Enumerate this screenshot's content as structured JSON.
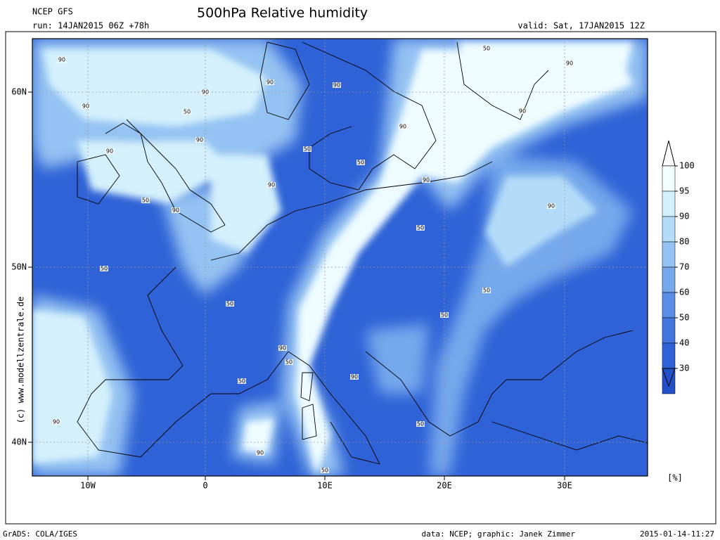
{
  "header": {
    "model": "NCEP GFS",
    "title": "500hPa Relative humidity",
    "run": "run: 14JAN2015 06Z +78h",
    "valid": "valid: Sat, 17JAN2015 12Z"
  },
  "map": {
    "lon_ticks": [
      "10W",
      "0",
      "10E",
      "20E",
      "30E"
    ],
    "lat_ticks": [
      "60N",
      "50N",
      "40N"
    ],
    "contour_labels": [
      "90",
      "90",
      "90",
      "50",
      "90",
      "90",
      "90",
      "90",
      "50",
      "50",
      "90",
      "90",
      "50",
      "90",
      "90",
      "50",
      "90",
      "90",
      "90",
      "50",
      "50",
      "50",
      "50",
      "50",
      "90",
      "50",
      "90",
      "50",
      "50",
      "90",
      "90",
      "50"
    ],
    "copyright": "(c) www.modellzentrale.de"
  },
  "colorbar": {
    "ticks": [
      "100",
      "95",
      "90",
      "80",
      "70",
      "60",
      "50",
      "40",
      "30"
    ],
    "unit": "[%]",
    "colors": [
      "#f2feff",
      "#d4f0fc",
      "#b4dcf8",
      "#94c2f2",
      "#76a8ec",
      "#5a8ee6",
      "#4276de",
      "#2f62d6",
      "#2250c8"
    ]
  },
  "footer": {
    "software": "GrADS: COLA/IGES",
    "credit": "data: NCEP; graphic: Janek Zimmer",
    "timestamp": "2015-01-14-11:27"
  }
}
